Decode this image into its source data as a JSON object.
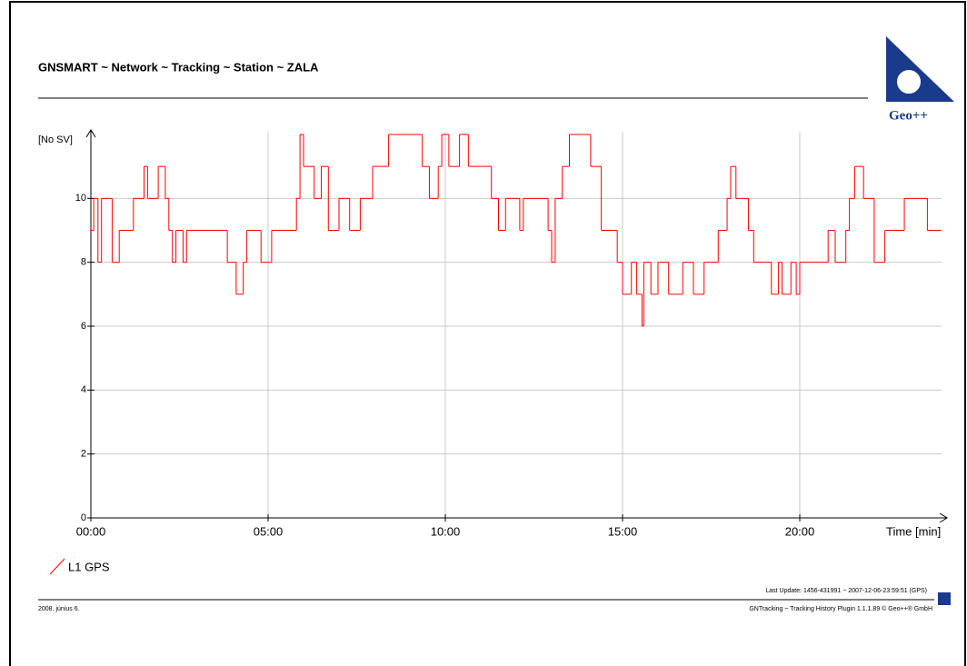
{
  "chart_data": {
    "type": "line",
    "title": "GNSMART ~ Network ~ Tracking ~ Station ~ ZALA",
    "logo": "Geo++",
    "y_label": "[No SV]",
    "x_label": "Time [min]",
    "series": [
      {
        "name": "L1 GPS",
        "color": "#ff0000",
        "x": [
          0.0,
          0.08,
          0.2,
          0.3,
          0.6,
          0.8,
          1.2,
          1.5,
          1.6,
          1.9,
          2.1,
          2.2,
          2.3,
          2.4,
          2.6,
          2.7,
          3.85,
          4.1,
          4.3,
          4.4,
          4.8,
          5.1,
          5.8,
          5.9,
          6.0,
          6.3,
          6.5,
          6.7,
          7.0,
          7.3,
          7.6,
          7.95,
          8.4,
          9.35,
          9.55,
          9.8,
          9.9,
          10.1,
          10.4,
          10.65,
          11.3,
          11.5,
          11.7,
          12.1,
          12.2,
          12.9,
          13.0,
          13.1,
          13.3,
          13.5,
          14.1,
          14.4,
          14.85,
          15.0,
          15.25,
          15.4,
          15.55,
          15.6,
          15.8,
          16.0,
          16.3,
          16.7,
          17.0,
          17.3,
          17.7,
          17.95,
          18.05,
          18.2,
          18.55,
          18.7,
          19.2,
          19.4,
          19.5,
          19.75,
          19.9,
          20.0,
          20.8,
          21.0,
          21.3,
          21.4,
          21.55,
          21.8,
          22.1,
          22.4,
          22.95,
          23.6
        ],
        "values": [
          9,
          10,
          8,
          10,
          8,
          9,
          10,
          11,
          10,
          11,
          10,
          9,
          8,
          9,
          8,
          9,
          8,
          7,
          8,
          9,
          8,
          9,
          10,
          12,
          11,
          10,
          11,
          9,
          10,
          9,
          10,
          11,
          12,
          11,
          10,
          11,
          12,
          11,
          12,
          11,
          10,
          9,
          10,
          9,
          10,
          9,
          8,
          10,
          11,
          12,
          11,
          9,
          8,
          7,
          8,
          7,
          6,
          8,
          7,
          8,
          7,
          8,
          7,
          8,
          9,
          10,
          11,
          10,
          9,
          8,
          7,
          8,
          7,
          8,
          7,
          8,
          9,
          8,
          9,
          10,
          11,
          10,
          8,
          9,
          10,
          9
        ]
      }
    ],
    "xlim": [
      0,
      24
    ],
    "ylim": [
      0,
      12
    ],
    "xticks": [
      {
        "value": 0,
        "label": "00:00"
      },
      {
        "value": 5,
        "label": "05:00"
      },
      {
        "value": 10,
        "label": "10:00"
      },
      {
        "value": 15,
        "label": "15:00"
      },
      {
        "value": 20,
        "label": "20:00"
      }
    ],
    "yticks": [
      0,
      2,
      4,
      6,
      8,
      10
    ],
    "grid": true,
    "footer": {
      "last_update": "Last Update: 1456-431991 ~ 2007-12-06-23:59:51 (GPS)",
      "plugin": "GNTracking ~ Tracking History Plugin 1.1.1.89 © Geo++® GmbH",
      "author": "2008. június 6."
    }
  }
}
